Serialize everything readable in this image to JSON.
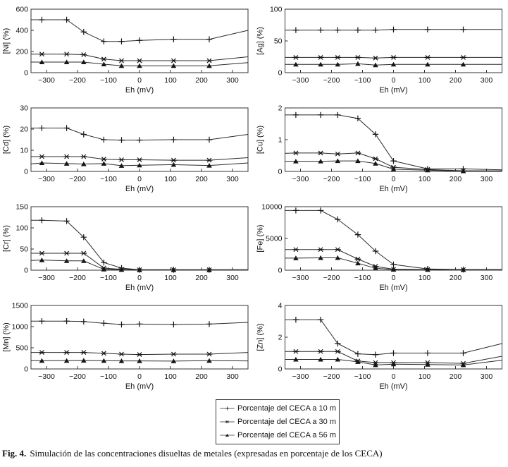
{
  "figure": {
    "caption_label": "Fig. 4.",
    "caption_text": "Simulación de las concentraciones disueltas de metales (expresadas en porcentaje de los CECA)"
  },
  "colors": {
    "line": "#2b2b2b",
    "marker": "#161616",
    "axis": "#333333"
  },
  "legend": {
    "items": [
      {
        "marker": "plus",
        "label": "Porcentaje del CECA a 10 m"
      },
      {
        "marker": "asterisk",
        "label": "Porcentaje del CECA a 30 m"
      },
      {
        "marker": "triangle",
        "label": "Porcentaje del CECA a 56 m"
      }
    ]
  },
  "chart_data": [
    {
      "type": "line",
      "ylabel": "[Ni] (%)",
      "xlabel": "Eh (mV)",
      "xlim": [
        -350,
        350
      ],
      "ylim": [
        0,
        600
      ],
      "xticks": [
        -300,
        -200,
        -100,
        0,
        100,
        200,
        300
      ],
      "yticks": [
        0,
        200,
        400,
        600
      ],
      "x": [
        -350,
        -315,
        -235,
        -180,
        -115,
        -58,
        0,
        110,
        225,
        350
      ],
      "series": [
        {
          "name": "Porcentaje del CECA a 10 m",
          "marker": "plus",
          "values": [
            500,
            500,
            500,
            385,
            295,
            295,
            305,
            315,
            315,
            400
          ]
        },
        {
          "name": "Porcentaje del CECA a 30 m",
          "marker": "asterisk",
          "values": [
            175,
            175,
            175,
            170,
            128,
            113,
            113,
            113,
            113,
            150
          ]
        },
        {
          "name": "Porcentaje del CECA a 56 m",
          "marker": "triangle",
          "values": [
            100,
            100,
            100,
            100,
            80,
            65,
            65,
            65,
            65,
            95
          ]
        }
      ]
    },
    {
      "type": "line",
      "ylabel": "[Ag] (%)",
      "xlabel": "Eh (mV)",
      "xlim": [
        -350,
        350
      ],
      "ylim": [
        0,
        100
      ],
      "xticks": [
        -300,
        -200,
        -100,
        0,
        100,
        200,
        300
      ],
      "yticks": [
        0,
        50,
        100
      ],
      "x": [
        -350,
        -315,
        -235,
        -180,
        -115,
        -58,
        0,
        110,
        225,
        350
      ],
      "series": [
        {
          "name": "Porcentaje del CECA a 10 m",
          "marker": "plus",
          "values": [
            67,
            67,
            67,
            67,
            67,
            67,
            68,
            68,
            68,
            68
          ]
        },
        {
          "name": "Porcentaje del CECA a 30 m",
          "marker": "asterisk",
          "values": [
            24,
            24,
            24,
            24,
            24,
            23,
            24,
            24,
            24,
            24
          ]
        },
        {
          "name": "Porcentaje del CECA a 56 m",
          "marker": "triangle",
          "values": [
            13,
            13,
            13,
            13,
            14,
            12,
            13,
            13,
            13,
            13
          ]
        }
      ]
    },
    {
      "type": "line",
      "ylabel": "[Cd] (%)",
      "xlabel": "Eh (mV)",
      "xlim": [
        -350,
        350
      ],
      "ylim": [
        0,
        30
      ],
      "xticks": [
        -300,
        -200,
        -100,
        0,
        100,
        200,
        300
      ],
      "yticks": [
        0,
        10,
        20,
        30
      ],
      "x": [
        -350,
        -315,
        -235,
        -180,
        -115,
        -58,
        0,
        110,
        225,
        350
      ],
      "series": [
        {
          "name": "Porcentaje del CECA a 10 m",
          "marker": "plus",
          "values": [
            20.5,
            20.5,
            20.5,
            17.5,
            15,
            14.8,
            14.8,
            15,
            15,
            17.5
          ]
        },
        {
          "name": "Porcentaje del CECA a 30 m",
          "marker": "asterisk",
          "values": [
            7,
            7,
            7,
            7,
            5.8,
            5.5,
            5.5,
            5.3,
            5.3,
            6.5
          ]
        },
        {
          "name": "Porcentaje del CECA a 56 m",
          "marker": "triangle",
          "values": [
            3.6,
            4,
            3.7,
            3.5,
            3.7,
            2.7,
            2.9,
            3.2,
            2.8,
            4
          ]
        }
      ]
    },
    {
      "type": "line",
      "ylabel": "[Cu] (%)",
      "xlabel": "Eh (mV)",
      "xlim": [
        -350,
        350
      ],
      "ylim": [
        0,
        2
      ],
      "xticks": [
        -300,
        -200,
        -100,
        0,
        100,
        200,
        300
      ],
      "yticks": [
        0,
        1,
        2
      ],
      "x": [
        -350,
        -315,
        -235,
        -180,
        -115,
        -58,
        0,
        110,
        225,
        350
      ],
      "series": [
        {
          "name": "Porcentaje del CECA a 10 m",
          "marker": "plus",
          "values": [
            1.78,
            1.78,
            1.78,
            1.78,
            1.67,
            1.17,
            0.33,
            0.08,
            0.08,
            0.05
          ]
        },
        {
          "name": "Porcentaje del CECA a 30 m",
          "marker": "asterisk",
          "values": [
            0.57,
            0.58,
            0.58,
            0.55,
            0.58,
            0.4,
            0.13,
            0.06,
            0.02,
            0.02
          ]
        },
        {
          "name": "Porcentaje del CECA a 56 m",
          "marker": "triangle",
          "values": [
            0.32,
            0.32,
            0.32,
            0.33,
            0.33,
            0.25,
            0.07,
            0.04,
            0.01,
            0.01
          ]
        }
      ]
    },
    {
      "type": "line",
      "ylabel": "[Cr] (%)",
      "xlabel": "Eh (mV)",
      "xlim": [
        -350,
        350
      ],
      "ylim": [
        0,
        150
      ],
      "xticks": [
        -300,
        -200,
        -100,
        0,
        100,
        200,
        300
      ],
      "yticks": [
        0,
        50,
        100,
        150
      ],
      "x": [
        -350,
        -315,
        -235,
        -180,
        -115,
        -58,
        0,
        110,
        225,
        350
      ],
      "series": [
        {
          "name": "Porcentaje del CECA a 10 m",
          "marker": "plus",
          "values": [
            118,
            118,
            116,
            78,
            18,
            5,
            1,
            1,
            1,
            1
          ]
        },
        {
          "name": "Porcentaje del CECA a 30 m",
          "marker": "asterisk",
          "values": [
            40,
            40,
            40,
            40,
            5,
            2,
            1,
            1,
            1,
            1
          ]
        },
        {
          "name": "Porcentaje del CECA a 56 m",
          "marker": "triangle",
          "values": [
            23,
            24,
            22,
            22,
            2,
            1,
            0.5,
            0.5,
            0.5,
            0.5
          ]
        }
      ]
    },
    {
      "type": "line",
      "ylabel": "[Fe] (%)",
      "xlabel": "Eh (mV)",
      "xlim": [
        -350,
        350
      ],
      "ylim": [
        0,
        10000
      ],
      "xticks": [
        -300,
        -200,
        -100,
        0,
        100,
        200,
        300
      ],
      "yticks": [
        0,
        5000,
        10000
      ],
      "x": [
        -350,
        -315,
        -235,
        -180,
        -115,
        -58,
        0,
        110,
        225,
        350
      ],
      "series": [
        {
          "name": "Porcentaje del CECA a 10 m",
          "marker": "plus",
          "values": [
            9400,
            9400,
            9400,
            8000,
            5600,
            3000,
            900,
            200,
            100,
            100
          ]
        },
        {
          "name": "Porcentaje del CECA a 30 m",
          "marker": "asterisk",
          "values": [
            3250,
            3250,
            3250,
            3250,
            1750,
            600,
            150,
            100,
            80,
            80
          ]
        },
        {
          "name": "Porcentaje del CECA a 56 m",
          "marker": "triangle",
          "values": [
            1900,
            1900,
            1950,
            1950,
            1100,
            300,
            100,
            80,
            50,
            50
          ]
        }
      ]
    },
    {
      "type": "line",
      "ylabel": "[Mn] (%)",
      "xlabel": "Eh (mV)",
      "xlim": [
        -350,
        350
      ],
      "ylim": [
        0,
        1500
      ],
      "xticks": [
        -300,
        -200,
        -100,
        0,
        100,
        200,
        300
      ],
      "yticks": [
        0,
        500,
        1000,
        1500
      ],
      "x": [
        -350,
        -315,
        -235,
        -180,
        -115,
        -58,
        0,
        110,
        225,
        350
      ],
      "series": [
        {
          "name": "Porcentaje del CECA a 10 m",
          "marker": "plus",
          "values": [
            1130,
            1130,
            1130,
            1120,
            1080,
            1050,
            1060,
            1050,
            1060,
            1100
          ]
        },
        {
          "name": "Porcentaje del CECA a 30 m",
          "marker": "asterisk",
          "values": [
            390,
            390,
            390,
            390,
            370,
            350,
            340,
            350,
            350,
            390
          ]
        },
        {
          "name": "Porcentaje del CECA a 56 m",
          "marker": "triangle",
          "values": [
            195,
            195,
            195,
            200,
            195,
            190,
            190,
            185,
            195,
            190
          ]
        }
      ]
    },
    {
      "type": "line",
      "ylabel": "[Zn] (%)",
      "xlabel": "Eh (mV)",
      "xlim": [
        -350,
        350
      ],
      "ylim": [
        0,
        4
      ],
      "xticks": [
        -300,
        -200,
        -100,
        0,
        100,
        200,
        300
      ],
      "yticks": [
        0,
        2,
        4
      ],
      "x": [
        -350,
        -315,
        -235,
        -180,
        -115,
        -58,
        0,
        110,
        225,
        350
      ],
      "series": [
        {
          "name": "Porcentaje del CECA a 10 m",
          "marker": "plus",
          "values": [
            3.1,
            3.1,
            3.1,
            1.6,
            0.95,
            0.9,
            1.0,
            1.0,
            1.0,
            1.6
          ]
        },
        {
          "name": "Porcentaje del CECA a 30 m",
          "marker": "asterisk",
          "values": [
            1.1,
            1.1,
            1.1,
            1.1,
            0.5,
            0.4,
            0.4,
            0.4,
            0.35,
            0.8
          ]
        },
        {
          "name": "Porcentaje del CECA a 56 m",
          "marker": "triangle",
          "values": [
            0.6,
            0.6,
            0.6,
            0.6,
            0.45,
            0.25,
            0.3,
            0.28,
            0.25,
            0.55
          ]
        }
      ]
    }
  ]
}
